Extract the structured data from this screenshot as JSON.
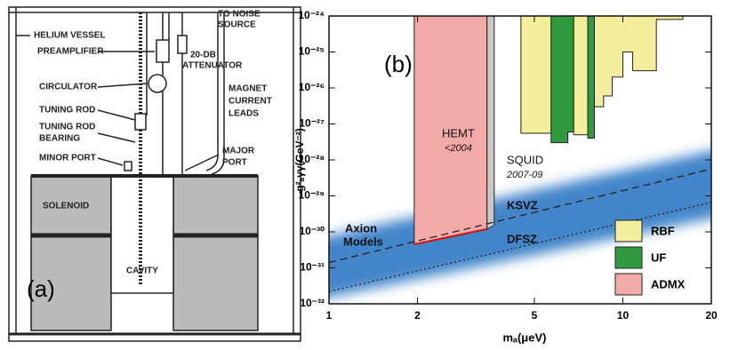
{
  "diagram": {
    "panel": "(a)",
    "labels": [
      "HELIUM VESSEL",
      "TO NOISE",
      "SOURCE",
      "PREAMPLIFIER",
      "20-DB",
      "ATTENUATOR",
      "CIRCULATOR",
      "MAGNET",
      "CURRENT",
      "LEADS",
      "TUNING ROD",
      "TUNING ROD",
      "BEARING",
      "MAJOR",
      "PORT",
      "MINOR PORT",
      "SOLENOID",
      "CAVITY"
    ]
  },
  "chart_data": {
    "type": "region",
    "panel": "(b)",
    "xlabel": "mₐ(μeV)",
    "ylabel": "g²ₐγγ(GeV⁻²)",
    "log_x": true,
    "log_y": true,
    "xlim": [
      1,
      20
    ],
    "xticks": [
      1,
      2,
      5,
      10,
      20
    ],
    "ylim": [
      1e-32,
      1e-24
    ],
    "yticks": [
      {
        "value": 1e-32,
        "label": "10⁻³²"
      },
      {
        "value": 1e-31,
        "label": "10⁻³¹"
      },
      {
        "value": 1e-30,
        "label": "10⁻³⁰"
      },
      {
        "value": 1e-29,
        "label": "10⁻²⁹"
      },
      {
        "value": 1e-28,
        "label": "10⁻²⁸"
      },
      {
        "value": 1e-27,
        "label": "10⁻²⁷"
      },
      {
        "value": 1e-26,
        "label": "10⁻²⁶"
      },
      {
        "value": 1e-25,
        "label": "10⁻²⁵"
      },
      {
        "value": 1e-24,
        "label": "10⁻²⁴"
      }
    ],
    "band": {
      "color": "#2f78c4",
      "x": [
        1,
        20
      ],
      "upper": [
        6e-31,
        2.3e-28
      ],
      "lower": [
        1.2e-32,
        3e-30
      ]
    },
    "lines": [
      {
        "style": "dashed",
        "x": [
          1,
          20
        ],
        "y": [
          1.4e-31,
          5.6e-29
        ]
      },
      {
        "style": "dotted",
        "x": [
          1,
          20
        ],
        "y": [
          2.2e-32,
          6.6e-30
        ]
      }
    ],
    "series": [
      {
        "name": "RBF",
        "color": "#f3ee9c",
        "x": [
          4.5,
          4.5,
          5.7,
          5.7,
          6.8,
          6.8,
          7.6,
          7.6,
          8.0,
          8.0,
          8.6,
          8.6,
          9.2,
          9.2,
          10,
          10,
          10.8,
          10.8,
          13,
          13,
          16,
          16
        ],
        "y": [
          1e-24,
          5.5e-28,
          5.5e-28,
          1e-24,
          1e-24,
          5e-28,
          5e-28,
          1e-24,
          1e-24,
          3e-27,
          3e-27,
          6e-27,
          6e-27,
          2e-26,
          2e-26,
          1e-25,
          1e-25,
          3e-26,
          3e-26,
          8e-25,
          8e-25,
          1e-24
        ]
      },
      {
        "name": "UF",
        "color": "#2f9a3f",
        "x": [
          5.7,
          5.7,
          6.5,
          6.5,
          6.8,
          6.8,
          7.6,
          7.6,
          8.0,
          8.0
        ],
        "y": [
          1e-24,
          3e-28,
          3e-28,
          6e-28,
          6e-28,
          1e-24,
          1e-24,
          4e-28,
          4e-28,
          1e-24
        ]
      },
      {
        "name": "ADMX",
        "color": "#f2aaa8",
        "x": [
          1.95,
          1.95,
          3.45,
          3.45
        ],
        "y": [
          1e-24,
          4.5e-31,
          1.2e-30,
          1e-24
        ]
      },
      {
        "color": "#c8c8c8",
        "x": [
          3.45,
          3.45,
          3.65,
          3.65
        ],
        "y": [
          1e-24,
          1.2e-30,
          1.5e-30,
          1e-24
        ]
      }
    ],
    "legend": "lower right",
    "annotations": [
      "HEMT",
      "<2004",
      "SQUID",
      "2007-09",
      "KSVZ",
      "DFSZ",
      "Axion",
      "Models"
    ]
  }
}
